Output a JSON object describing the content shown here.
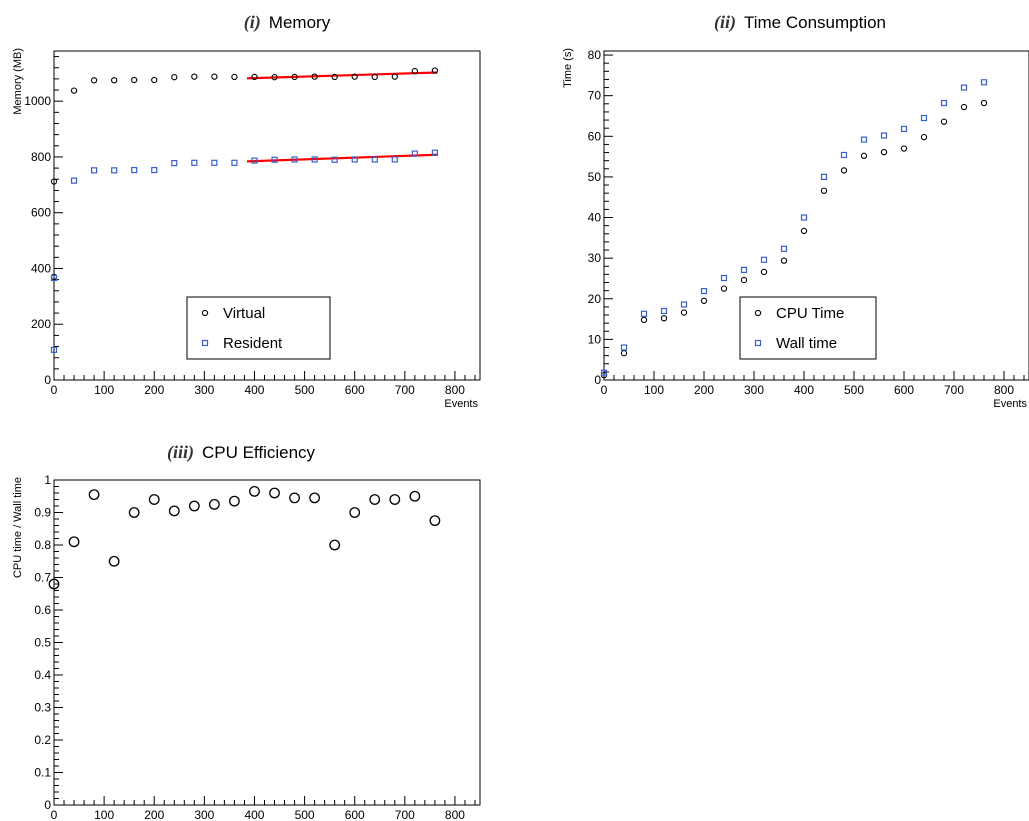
{
  "chart_data": [
    {
      "type": "scatter",
      "index_label": "(i)",
      "title": "Memory",
      "xlabel": "Events",
      "ylabel": "Memory (MB)",
      "xlim": [
        0,
        850
      ],
      "ylim": [
        0,
        1180
      ],
      "x_ticks": [
        0,
        100,
        200,
        300,
        400,
        500,
        600,
        700,
        800
      ],
      "y_ticks": [
        0,
        200,
        400,
        600,
        800,
        1000
      ],
      "legend": {
        "placement": "bottom-center",
        "entries": [
          "Virtual",
          "Resident"
        ]
      },
      "grid": false,
      "series": [
        {
          "name": "Virtual",
          "marker": "circle",
          "color": "#000000",
          "x": [
            0,
            0,
            40,
            80,
            120,
            160,
            200,
            240,
            280,
            320,
            360,
            400,
            440,
            480,
            520,
            560,
            600,
            640,
            680,
            720,
            760
          ],
          "y": [
            370,
            712,
            1038,
            1075,
            1075,
            1076,
            1076,
            1086,
            1088,
            1088,
            1087,
            1087,
            1086,
            1087,
            1088,
            1087,
            1088,
            1087,
            1088,
            1108,
            1110
          ]
        },
        {
          "name": "Resident",
          "marker": "square",
          "color": "#3a5fcd",
          "x": [
            0,
            0,
            40,
            80,
            120,
            160,
            200,
            240,
            280,
            320,
            360,
            400,
            440,
            480,
            520,
            560,
            600,
            640,
            680,
            720,
            760
          ],
          "y": [
            108,
            366,
            715,
            752,
            752,
            753,
            753,
            778,
            779,
            779,
            779,
            787,
            790,
            791,
            791,
            790,
            791,
            791,
            791,
            812,
            815
          ]
        }
      ],
      "fits": [
        {
          "color": "#ff0000",
          "x": [
            385,
            765
          ],
          "y": [
            1082,
            1103
          ]
        },
        {
          "color": "#ff0000",
          "x": [
            385,
            765
          ],
          "y": [
            784,
            808
          ]
        }
      ]
    },
    {
      "type": "scatter",
      "index_label": "(ii)",
      "title": "Time Consumption",
      "xlabel": "Events",
      "ylabel": "Time (s)",
      "xlim": [
        0,
        850
      ],
      "ylim": [
        0,
        81
      ],
      "x_ticks": [
        0,
        100,
        200,
        300,
        400,
        500,
        600,
        700,
        800
      ],
      "y_ticks": [
        0,
        10,
        20,
        30,
        40,
        50,
        60,
        70,
        80
      ],
      "legend": {
        "placement": "bottom-center",
        "entries": [
          "CPU Time",
          "Wall time"
        ]
      },
      "grid": false,
      "series": [
        {
          "name": "CPU Time",
          "marker": "circle",
          "color": "#000000",
          "x": [
            0,
            40,
            80,
            120,
            160,
            200,
            240,
            280,
            320,
            360,
            400,
            440,
            480,
            520,
            560,
            600,
            640,
            680,
            720,
            760
          ],
          "y": [
            1.2,
            6.6,
            14.8,
            15.2,
            16.6,
            19.5,
            22.5,
            24.6,
            26.6,
            29.4,
            36.7,
            46.6,
            51.6,
            55.2,
            56.1,
            57.0,
            59.8,
            63.6,
            67.2,
            68.2
          ]
        },
        {
          "name": "Wall time",
          "marker": "square",
          "color": "#3a5fcd",
          "x": [
            0,
            40,
            80,
            120,
            160,
            200,
            240,
            280,
            320,
            360,
            400,
            440,
            480,
            520,
            560,
            600,
            640,
            680,
            720,
            760
          ],
          "y": [
            1.8,
            8.0,
            16.3,
            17.0,
            18.6,
            21.9,
            25.1,
            27.1,
            29.6,
            32.3,
            40.0,
            50.0,
            55.4,
            59.2,
            60.2,
            61.8,
            64.5,
            68.2,
            72.0,
            73.3
          ]
        }
      ]
    },
    {
      "type": "scatter",
      "index_label": "(iii)",
      "title": "CPU Efficiency",
      "xlabel": "",
      "ylabel": "CPU time / Wall time",
      "xlim": [
        0,
        850
      ],
      "ylim": [
        0,
        1
      ],
      "x_ticks": [
        0,
        100,
        200,
        300,
        400,
        500,
        600,
        700,
        800
      ],
      "y_ticks": [
        0,
        0.1,
        0.2,
        0.3,
        0.4,
        0.5,
        0.6,
        0.7,
        0.8,
        0.9,
        1
      ],
      "y_tick_labels": [
        "0",
        "0.1",
        "0.2",
        "0.3",
        "0.4",
        "0.5",
        "0.6",
        "0.7",
        "0.8",
        "0.9",
        "1"
      ],
      "grid": false,
      "series": [
        {
          "marker": "circle",
          "color": "#000000",
          "x": [
            0,
            40,
            80,
            120,
            160,
            200,
            240,
            280,
            320,
            360,
            400,
            440,
            480,
            520,
            560,
            600,
            640,
            680,
            720,
            760
          ],
          "y": [
            0.68,
            0.81,
            0.955,
            0.75,
            0.9,
            0.94,
            0.905,
            0.92,
            0.925,
            0.935,
            0.965,
            0.96,
            0.945,
            0.945,
            0.8,
            0.9,
            0.94,
            0.94,
            0.95,
            0.875
          ]
        }
      ]
    }
  ]
}
